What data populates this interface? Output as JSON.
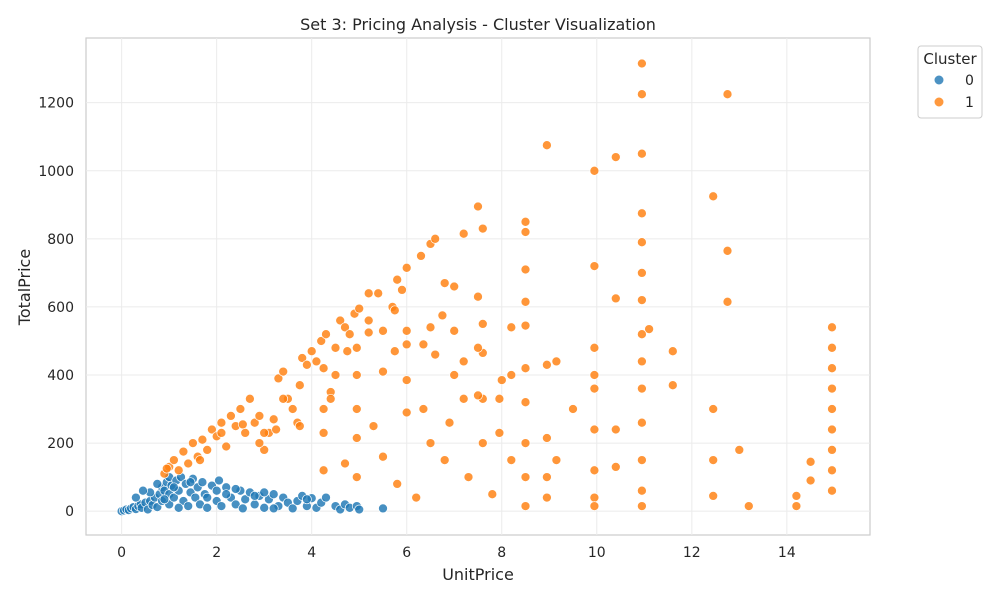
{
  "chart_data": {
    "type": "scatter",
    "title": "Set 3: Pricing Analysis - Cluster Visualization",
    "xlabel": "UnitPrice",
    "ylabel": "TotalPrice",
    "xlim": [
      -0.75,
      15.75
    ],
    "ylim": [
      -70,
      1390
    ],
    "xticks": [
      "0",
      "2",
      "4",
      "6",
      "8",
      "10",
      "12",
      "14"
    ],
    "yticks": [
      "0",
      "200",
      "400",
      "600",
      "800",
      "1000",
      "1200"
    ],
    "grid": true,
    "legend": {
      "title": "Cluster",
      "placement": "outside-top-right"
    },
    "colors": {
      "cluster_0": "#1f77b4",
      "cluster_1": "#ff7f0e"
    },
    "series": [
      {
        "name": "0",
        "color": "#1f77b4",
        "points": [
          [
            0.0,
            0
          ],
          [
            0.05,
            2
          ],
          [
            0.1,
            5
          ],
          [
            0.15,
            3
          ],
          [
            0.2,
            8
          ],
          [
            0.25,
            12
          ],
          [
            0.3,
            6
          ],
          [
            0.35,
            15
          ],
          [
            0.4,
            20
          ],
          [
            0.42,
            10
          ],
          [
            0.5,
            25
          ],
          [
            0.55,
            5
          ],
          [
            0.6,
            30
          ],
          [
            0.65,
            18
          ],
          [
            0.7,
            40
          ],
          [
            0.75,
            12
          ],
          [
            0.8,
            50
          ],
          [
            0.85,
            70
          ],
          [
            0.85,
            30
          ],
          [
            0.9,
            60
          ],
          [
            0.95,
            85
          ],
          [
            1.0,
            100
          ],
          [
            1.0,
            50
          ],
          [
            1.0,
            20
          ],
          [
            1.05,
            75
          ],
          [
            1.1,
            40
          ],
          [
            1.15,
            90
          ],
          [
            1.2,
            60
          ],
          [
            1.25,
            100
          ],
          [
            1.3,
            30
          ],
          [
            1.35,
            80
          ],
          [
            1.4,
            15
          ],
          [
            1.45,
            55
          ],
          [
            1.5,
            95
          ],
          [
            1.55,
            40
          ],
          [
            1.6,
            70
          ],
          [
            1.65,
            20
          ],
          [
            1.7,
            85
          ],
          [
            1.75,
            50
          ],
          [
            1.8,
            10
          ],
          [
            1.9,
            75
          ],
          [
            2.0,
            60
          ],
          [
            2.0,
            30
          ],
          [
            2.05,
            90
          ],
          [
            2.1,
            15
          ],
          [
            2.2,
            70
          ],
          [
            2.3,
            40
          ],
          [
            2.4,
            20
          ],
          [
            2.5,
            60
          ],
          [
            2.55,
            8
          ],
          [
            2.6,
            35
          ],
          [
            2.7,
            55
          ],
          [
            2.8,
            20
          ],
          [
            2.9,
            45
          ],
          [
            3.0,
            10
          ],
          [
            3.1,
            35
          ],
          [
            3.2,
            50
          ],
          [
            3.3,
            15
          ],
          [
            3.4,
            40
          ],
          [
            3.5,
            25
          ],
          [
            3.6,
            8
          ],
          [
            3.7,
            30
          ],
          [
            3.8,
            45
          ],
          [
            3.9,
            15
          ],
          [
            4.0,
            38
          ],
          [
            4.1,
            10
          ],
          [
            4.2,
            25
          ],
          [
            4.3,
            40
          ],
          [
            4.5,
            15
          ],
          [
            4.6,
            5
          ],
          [
            4.7,
            20
          ],
          [
            4.8,
            10
          ],
          [
            4.95,
            15
          ],
          [
            5.0,
            5
          ],
          [
            5.5,
            8
          ],
          [
            0.3,
            40
          ],
          [
            0.6,
            55
          ],
          [
            0.9,
            35
          ],
          [
            1.2,
            10
          ],
          [
            1.8,
            40
          ],
          [
            2.2,
            50
          ],
          [
            2.8,
            45
          ],
          [
            3.2,
            8
          ],
          [
            3.9,
            35
          ],
          [
            0.45,
            60
          ],
          [
            0.75,
            80
          ],
          [
            1.1,
            70
          ],
          [
            1.45,
            85
          ],
          [
            2.4,
            65
          ],
          [
            3.0,
            55
          ]
        ]
      },
      {
        "name": "1",
        "color": "#ff7f0e",
        "points": [
          [
            0.9,
            110
          ],
          [
            1.0,
            130
          ],
          [
            1.1,
            150
          ],
          [
            1.2,
            120
          ],
          [
            1.3,
            175
          ],
          [
            1.4,
            140
          ],
          [
            1.5,
            200
          ],
          [
            1.6,
            160
          ],
          [
            1.7,
            210
          ],
          [
            1.8,
            180
          ],
          [
            1.9,
            240
          ],
          [
            2.0,
            220
          ],
          [
            2.1,
            260
          ],
          [
            2.2,
            190
          ],
          [
            2.3,
            280
          ],
          [
            2.4,
            250
          ],
          [
            2.5,
            300
          ],
          [
            2.6,
            230
          ],
          [
            2.7,
            330
          ],
          [
            2.8,
            260
          ],
          [
            2.9,
            280
          ],
          [
            3.0,
            180
          ],
          [
            3.1,
            230
          ],
          [
            3.2,
            270
          ],
          [
            3.3,
            390
          ],
          [
            3.4,
            410
          ],
          [
            3.5,
            330
          ],
          [
            3.6,
            300
          ],
          [
            3.7,
            260
          ],
          [
            3.8,
            450
          ],
          [
            3.9,
            430
          ],
          [
            4.0,
            470
          ],
          [
            4.1,
            440
          ],
          [
            4.2,
            500
          ],
          [
            4.3,
            520
          ],
          [
            4.4,
            350
          ],
          [
            4.5,
            480
          ],
          [
            4.6,
            560
          ],
          [
            4.7,
            540
          ],
          [
            4.8,
            520
          ],
          [
            4.9,
            580
          ],
          [
            5.0,
            595
          ],
          [
            5.2,
            560
          ],
          [
            5.4,
            640
          ],
          [
            5.5,
            530
          ],
          [
            5.7,
            600
          ],
          [
            5.8,
            680
          ],
          [
            5.9,
            650
          ],
          [
            6.0,
            715
          ],
          [
            6.3,
            750
          ],
          [
            6.5,
            785
          ],
          [
            6.6,
            800
          ],
          [
            6.8,
            670
          ],
          [
            7.0,
            660
          ],
          [
            7.2,
            815
          ],
          [
            7.5,
            895
          ],
          [
            7.6,
            830
          ],
          [
            8.5,
            850
          ],
          [
            8.5,
            820
          ],
          [
            8.95,
            1075
          ],
          [
            9.95,
            1000
          ],
          [
            10.4,
            1040
          ],
          [
            10.95,
            1315
          ],
          [
            10.95,
            1225
          ],
          [
            10.95,
            1050
          ],
          [
            10.95,
            875
          ],
          [
            10.95,
            790
          ],
          [
            12.45,
            925
          ],
          [
            12.75,
            1225
          ],
          [
            12.75,
            765
          ],
          [
            12.75,
            615
          ],
          [
            14.95,
            540
          ],
          [
            14.95,
            480
          ],
          [
            14.95,
            420
          ],
          [
            14.95,
            360
          ],
          [
            14.95,
            300
          ],
          [
            14.95,
            240
          ],
          [
            14.95,
            180
          ],
          [
            14.95,
            120
          ],
          [
            14.95,
            60
          ],
          [
            14.5,
            145
          ],
          [
            14.5,
            90
          ],
          [
            14.2,
            45
          ],
          [
            14.2,
            15
          ],
          [
            13.2,
            15
          ],
          [
            13.0,
            180
          ],
          [
            12.45,
            300
          ],
          [
            12.45,
            150
          ],
          [
            12.45,
            45
          ],
          [
            11.6,
            470
          ],
          [
            11.6,
            370
          ],
          [
            11.1,
            535
          ],
          [
            10.95,
            700
          ],
          [
            10.95,
            620
          ],
          [
            10.95,
            520
          ],
          [
            10.95,
            440
          ],
          [
            10.95,
            360
          ],
          [
            10.95,
            260
          ],
          [
            10.95,
            150
          ],
          [
            10.95,
            60
          ],
          [
            10.95,
            15
          ],
          [
            10.4,
            625
          ],
          [
            10.4,
            240
          ],
          [
            10.4,
            130
          ],
          [
            9.95,
            720
          ],
          [
            9.95,
            480
          ],
          [
            9.95,
            400
          ],
          [
            9.95,
            360
          ],
          [
            9.95,
            240
          ],
          [
            9.95,
            120
          ],
          [
            9.95,
            40
          ],
          [
            9.95,
            15
          ],
          [
            9.5,
            300
          ],
          [
            9.15,
            440
          ],
          [
            9.15,
            150
          ],
          [
            8.95,
            430
          ],
          [
            8.95,
            215
          ],
          [
            8.95,
            100
          ],
          [
            8.95,
            40
          ],
          [
            8.5,
            710
          ],
          [
            8.5,
            615
          ],
          [
            8.5,
            545
          ],
          [
            8.5,
            420
          ],
          [
            8.5,
            320
          ],
          [
            8.5,
            200
          ],
          [
            8.5,
            100
          ],
          [
            8.5,
            15
          ],
          [
            8.2,
            540
          ],
          [
            8.2,
            400
          ],
          [
            8.0,
            385
          ],
          [
            7.95,
            330
          ],
          [
            7.95,
            230
          ],
          [
            7.6,
            550
          ],
          [
            7.6,
            465
          ],
          [
            7.6,
            330
          ],
          [
            7.6,
            200
          ],
          [
            7.5,
            630
          ],
          [
            7.5,
            480
          ],
          [
            7.5,
            340
          ],
          [
            7.2,
            440
          ],
          [
            7.2,
            330
          ],
          [
            7.0,
            530
          ],
          [
            7.0,
            400
          ],
          [
            6.75,
            575
          ],
          [
            6.6,
            460
          ],
          [
            6.5,
            540
          ],
          [
            6.35,
            490
          ],
          [
            6.35,
            300
          ],
          [
            6.0,
            530
          ],
          [
            6.0,
            490
          ],
          [
            6.0,
            385
          ],
          [
            6.0,
            290
          ],
          [
            5.75,
            590
          ],
          [
            5.75,
            470
          ],
          [
            5.5,
            410
          ],
          [
            5.2,
            640
          ],
          [
            5.2,
            525
          ],
          [
            4.95,
            480
          ],
          [
            4.95,
            400
          ],
          [
            4.95,
            300
          ],
          [
            4.95,
            215
          ],
          [
            4.95,
            100
          ],
          [
            4.75,
            470
          ],
          [
            4.5,
            400
          ],
          [
            4.4,
            330
          ],
          [
            4.25,
            420
          ],
          [
            4.25,
            300
          ],
          [
            4.25,
            230
          ],
          [
            4.25,
            120
          ],
          [
            3.75,
            370
          ],
          [
            3.75,
            250
          ],
          [
            3.4,
            330
          ],
          [
            3.25,
            240
          ],
          [
            3.0,
            230
          ],
          [
            2.9,
            200
          ],
          [
            2.55,
            255
          ],
          [
            2.1,
            230
          ],
          [
            1.65,
            150
          ],
          [
            0.95,
            125
          ],
          [
            6.5,
            200
          ],
          [
            6.8,
            150
          ],
          [
            7.3,
            100
          ],
          [
            7.8,
            50
          ],
          [
            8.2,
            150
          ],
          [
            5.5,
            160
          ],
          [
            5.8,
            80
          ],
          [
            6.2,
            40
          ],
          [
            5.3,
            250
          ],
          [
            4.7,
            140
          ],
          [
            6.9,
            260
          ]
        ]
      }
    ]
  }
}
